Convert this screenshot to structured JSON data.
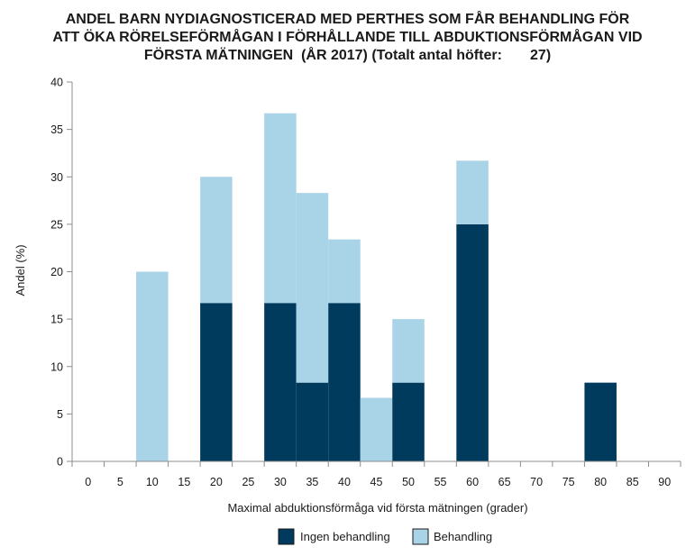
{
  "chart_data": {
    "type": "bar",
    "stacked": true,
    "title_lines": [
      "ANDEL BARN NYDIAGNOSTICERAD MED PERTHES SOM FÅR BEHANDLING FÖR",
      "ATT ÖKA RÖRELSEFÖRMÅGAN I FÖRHÅLLANDE TILL ABDUKTIONSFÖRMÅGAN VID",
      "FÖRSTA MÄTNINGEN  (ÅR 2017) (Totalt antal höfter:       27)"
    ],
    "xlabel": "Maximal abduktionsförmåga vid första mätningen (grader)",
    "ylabel": "Andel (%)",
    "xlim": [
      -2.5,
      92.5
    ],
    "ylim": [
      0,
      40
    ],
    "x_ticks": [
      "0",
      "5",
      "10",
      "15",
      "20",
      "25",
      "30",
      "35",
      "40",
      "45",
      "50",
      "55",
      "60",
      "65",
      "70",
      "75",
      "80",
      "85",
      "90"
    ],
    "y_ticks": [
      "0",
      "5",
      "10",
      "15",
      "20",
      "25",
      "30",
      "35",
      "40"
    ],
    "bin_width": 5,
    "x": [
      10,
      20,
      30,
      35,
      40,
      45,
      50,
      60,
      80
    ],
    "series": [
      {
        "name": "Ingen behandling",
        "color": "#003a5d",
        "values": [
          0,
          16.7,
          16.7,
          8.3,
          16.7,
          0,
          8.3,
          25.0,
          8.3
        ]
      },
      {
        "name": "Behandling",
        "color": "#a9d3e7",
        "values": [
          20.0,
          13.3,
          20.0,
          20.0,
          6.7,
          6.7,
          6.7,
          6.7,
          0
        ]
      }
    ],
    "grid": false,
    "legend_position": "bottom-center"
  }
}
